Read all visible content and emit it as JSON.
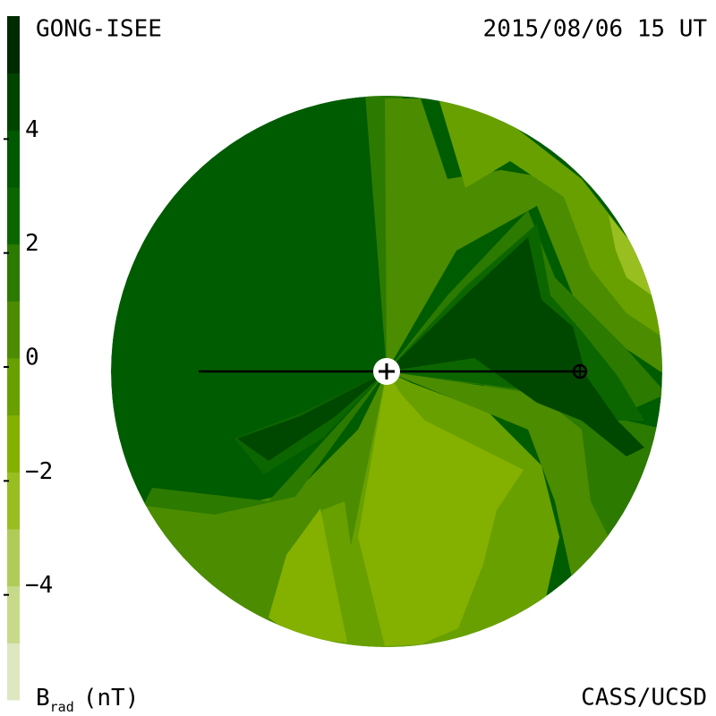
{
  "chart_data": {
    "type": "contour",
    "title": "GONG-ISEE",
    "subtitle": "2015/08/06 15 UT",
    "credit": "CASS/UCSD",
    "colorbar_label": {
      "symbol": "B",
      "subscript": "rad",
      "unit": "(nT)"
    },
    "ylim": [
      -6,
      6
    ],
    "yticks": [
      {
        "value": -4,
        "label": "−4"
      },
      {
        "value": -2,
        "label": "−2"
      },
      0,
      2,
      4
    ],
    "colors": [
      "#dde8c0",
      "#c6da8a",
      "#b0cc58",
      "#98be20",
      "#84b000",
      "#68a000",
      "#4c8c00",
      "#2c7a00",
      "#0c6600",
      "#005800",
      "#004400",
      "#002a00"
    ]
  }
}
